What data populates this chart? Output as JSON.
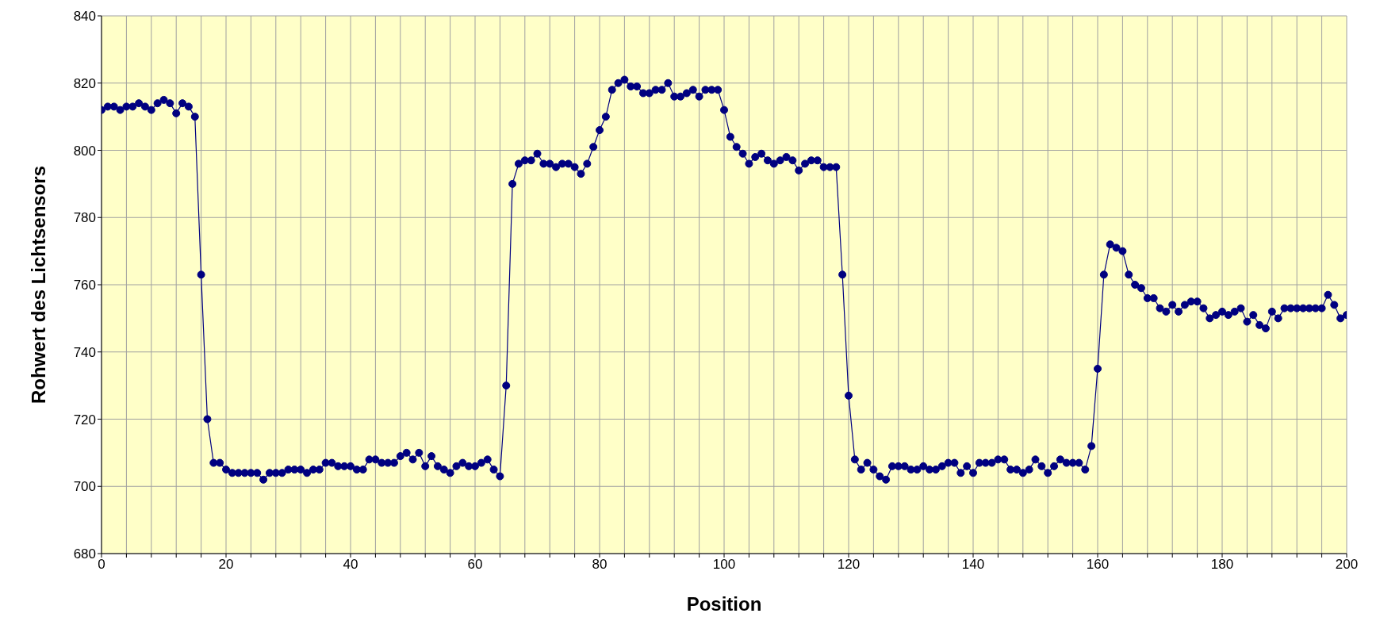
{
  "chart_data": {
    "type": "line",
    "xlabel": "Position",
    "ylabel": "Rohwert des Lichtsensors",
    "x": [
      0,
      1,
      2,
      3,
      4,
      5,
      6,
      7,
      8,
      9,
      10,
      11,
      12,
      13,
      14,
      15,
      16,
      17,
      18,
      19,
      20,
      21,
      22,
      23,
      24,
      25,
      26,
      27,
      28,
      29,
      30,
      31,
      32,
      33,
      34,
      35,
      36,
      37,
      38,
      39,
      40,
      41,
      42,
      43,
      44,
      45,
      46,
      47,
      48,
      49,
      50,
      51,
      52,
      53,
      54,
      55,
      56,
      57,
      58,
      59,
      60,
      61,
      62,
      63,
      64,
      65,
      66,
      67,
      68,
      69,
      70,
      71,
      72,
      73,
      74,
      75,
      76,
      77,
      78,
      79,
      80,
      81,
      82,
      83,
      84,
      85,
      86,
      87,
      88,
      89,
      90,
      91,
      92,
      93,
      94,
      95,
      96,
      97,
      98,
      99,
      100,
      101,
      102,
      103,
      104,
      105,
      106,
      107,
      108,
      109,
      110,
      111,
      112,
      113,
      114,
      115,
      116,
      117,
      118,
      119,
      120,
      121,
      122,
      123,
      124,
      125,
      126,
      127,
      128,
      129,
      130,
      131,
      132,
      133,
      134,
      135,
      136,
      137,
      138,
      139,
      140,
      141,
      142,
      143,
      144,
      145,
      146,
      147,
      148,
      149,
      150,
      151,
      152,
      153,
      154,
      155,
      156,
      157,
      158,
      159,
      160,
      161,
      162,
      163,
      164,
      165,
      166,
      167,
      168,
      169,
      170,
      171,
      172,
      173,
      174,
      175,
      176,
      177,
      178,
      179,
      180,
      181,
      182,
      183,
      184,
      185,
      186,
      187,
      188,
      189,
      190,
      191,
      192,
      193,
      194,
      195,
      196,
      197,
      198,
      199,
      200
    ],
    "series": [
      {
        "color": "#000080",
        "values": [
          812,
          813,
          813,
          812,
          813,
          813,
          814,
          813,
          812,
          814,
          815,
          814,
          811,
          814,
          813,
          810,
          763,
          720,
          707,
          707,
          705,
          704,
          704,
          704,
          704,
          704,
          702,
          704,
          704,
          704,
          705,
          705,
          705,
          704,
          705,
          705,
          707,
          707,
          706,
          706,
          706,
          705,
          705,
          708,
          708,
          707,
          707,
          707,
          709,
          710,
          708,
          710,
          706,
          709,
          706,
          705,
          704,
          706,
          707,
          706,
          706,
          707,
          708,
          705,
          703,
          730,
          790,
          796,
          797,
          797,
          799,
          796,
          796,
          795,
          796,
          796,
          795,
          793,
          796,
          801,
          806,
          810,
          818,
          820,
          821,
          819,
          819,
          817,
          817,
          818,
          818,
          820,
          816,
          816,
          817,
          818,
          816,
          818,
          818,
          818,
          812,
          804,
          801,
          799,
          796,
          798,
          799,
          797,
          796,
          797,
          798,
          797,
          794,
          796,
          797,
          797,
          795,
          795,
          795,
          763,
          727,
          708,
          705,
          707,
          705,
          703,
          702,
          706,
          706,
          706,
          705,
          705,
          706,
          705,
          705,
          706,
          707,
          707,
          704,
          706,
          704,
          707,
          707,
          707,
          708,
          708,
          705,
          705,
          704,
          705,
          708,
          706,
          704,
          706,
          708,
          707,
          707,
          707,
          705,
          712,
          735,
          763,
          772,
          771,
          770,
          763,
          760,
          759,
          756,
          756,
          753,
          752,
          754,
          752,
          754,
          755,
          755,
          753,
          750,
          751,
          752,
          751,
          752,
          753,
          749,
          751,
          748,
          747,
          752,
          750,
          753,
          753,
          753,
          753,
          753,
          753,
          753,
          757,
          754,
          750,
          751
        ]
      }
    ],
    "xlim": [
      0,
      200
    ],
    "xticks": [
      0,
      {
        "value": 4,
        "label": null
      },
      {
        "value": 8,
        "label": null
      },
      {
        "value": 12,
        "label": null
      },
      {
        "value": 16,
        "label": null
      },
      20,
      {
        "value": 24,
        "label": null
      },
      {
        "value": 28,
        "label": null
      },
      {
        "value": 32,
        "label": null
      },
      {
        "value": 36,
        "label": null
      },
      40,
      {
        "value": 44,
        "label": null
      },
      {
        "value": 48,
        "label": null
      },
      {
        "value": 52,
        "label": null
      },
      {
        "value": 56,
        "label": null
      },
      60,
      {
        "value": 64,
        "label": null
      },
      {
        "value": 68,
        "label": null
      },
      {
        "value": 72,
        "label": null
      },
      {
        "value": 76,
        "label": null
      },
      80,
      {
        "value": 84,
        "label": null
      },
      {
        "value": 88,
        "label": null
      },
      {
        "value": 92,
        "label": null
      },
      {
        "value": 96,
        "label": null
      },
      100,
      {
        "value": 104,
        "label": null
      },
      {
        "value": 108,
        "label": null
      },
      {
        "value": 112,
        "label": null
      },
      {
        "value": 116,
        "label": null
      },
      120,
      {
        "value": 124,
        "label": null
      },
      {
        "value": 128,
        "label": null
      },
      {
        "value": 132,
        "label": null
      },
      {
        "value": 136,
        "label": null
      },
      140,
      {
        "value": 144,
        "label": null
      },
      {
        "value": 148,
        "label": null
      },
      {
        "value": 152,
        "label": null
      },
      {
        "value": 156,
        "label": null
      },
      160,
      {
        "value": 164,
        "label": null
      },
      {
        "value": 168,
        "label": null
      },
      {
        "value": 172,
        "label": null
      },
      {
        "value": 176,
        "label": null
      },
      180,
      {
        "value": 184,
        "label": null
      },
      {
        "value": 188,
        "label": null
      },
      {
        "value": 192,
        "label": null
      },
      {
        "value": 196,
        "label": null
      },
      200
    ],
    "ylim": [
      680,
      840
    ],
    "yticks": [
      680,
      700,
      720,
      740,
      760,
      780,
      800,
      820,
      840
    ],
    "grid": true,
    "marker": "circle",
    "line_style": "solid"
  }
}
